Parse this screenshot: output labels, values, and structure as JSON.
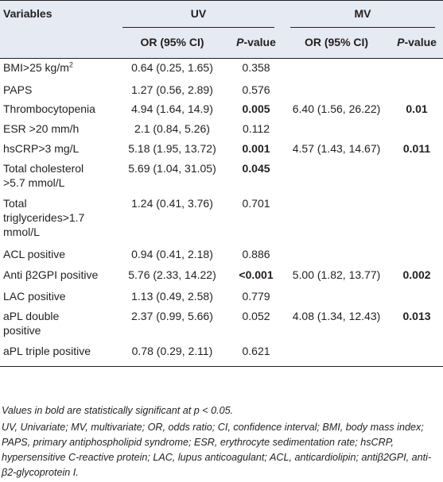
{
  "header": {
    "variables": "Variables",
    "uv": "UV",
    "mv": "MV",
    "or_ci": "OR (95% CI)",
    "p_value_italic": "P",
    "p_value_rest": "-value"
  },
  "rows": [
    {
      "variable": "BMI>25 kg/m",
      "variable_sup": "2",
      "uv_or": "0.64 (0.25, 1.65)",
      "uv_p": "0.358",
      "uv_p_bold": false,
      "mv_or": "",
      "mv_p": "",
      "mv_p_bold": false
    },
    {
      "variable": "PAPS",
      "uv_or": "1.27 (0.56, 2.89)",
      "uv_p": "0.576",
      "uv_p_bold": false,
      "mv_or": "",
      "mv_p": "",
      "mv_p_bold": false
    },
    {
      "variable": "Thrombocytopenia",
      "uv_or": "4.94 (1.64, 14.9)",
      "uv_p": "0.005",
      "uv_p_bold": true,
      "mv_or": "6.40 (1.56, 26.22)",
      "mv_p": "0.01",
      "mv_p_bold": true
    },
    {
      "variable": "ESR >20 mm/h",
      "uv_or": "2.1 (0.84, 5.26)",
      "uv_p": "0.112",
      "uv_p_bold": false,
      "mv_or": "",
      "mv_p": "",
      "mv_p_bold": false
    },
    {
      "variable": "hsCRP>3 mg/L",
      "uv_or": "5.18 (1.95, 13.72)",
      "uv_p": "0.001",
      "uv_p_bold": true,
      "mv_or": "4.57 (1.43, 14.67)",
      "mv_p": "0.011",
      "mv_p_bold": true
    },
    {
      "variable_line1": "Total cholesterol",
      "variable_line2": ">5.7 mmol/L",
      "uv_or": "5.69 (1.04, 31.05)",
      "uv_p": "0.045",
      "uv_p_bold": true,
      "mv_or": "",
      "mv_p": "",
      "mv_p_bold": false
    },
    {
      "variable_line1": "Total",
      "variable_line2": "triglycerides>1.7",
      "variable_line3": "mmol/L",
      "uv_or": "1.24 (0.41, 3.76)",
      "uv_p": "0.701",
      "uv_p_bold": false,
      "mv_or": "",
      "mv_p": "",
      "mv_p_bold": false
    },
    {
      "variable": "ACL positive",
      "uv_or": "0.94 (0.41, 2.18)",
      "uv_p": "0.886",
      "uv_p_bold": false,
      "mv_or": "",
      "mv_p": "",
      "mv_p_bold": false
    },
    {
      "variable": "Anti β2GPI positive",
      "uv_or": "5.76 (2.33, 14.22)",
      "uv_p": "<0.001",
      "uv_p_bold": true,
      "mv_or": "5.00 (1.82, 13.77)",
      "mv_p": "0.002",
      "mv_p_bold": true
    },
    {
      "variable": "LAC positive",
      "uv_or": "1.13 (0.49, 2.58)",
      "uv_p": "0.779",
      "uv_p_bold": false,
      "mv_or": "",
      "mv_p": "",
      "mv_p_bold": false
    },
    {
      "variable_line1": "aPL double",
      "variable_line2": "positive",
      "uv_or": "2.37 (0.99, 5.66)",
      "uv_p": "0.052",
      "uv_p_bold": false,
      "mv_or": "4.08 (1.34, 12.43)",
      "mv_p": "0.013",
      "mv_p_bold": true
    },
    {
      "variable": "aPL triple positive",
      "uv_or": "0.78 (0.29, 2.11)",
      "uv_p": "0.621",
      "uv_p_bold": false,
      "mv_or": "",
      "mv_p": "",
      "mv_p_bold": false
    }
  ],
  "notes": {
    "line1": "Values in bold are statistically significant at p < 0.05.",
    "line2": "UV, Univariate; MV, multivariate; OR, odds ratio; CI, confidence interval; BMI, body mass index; PAPS, primary antiphospholipid syndrome; ESR, erythrocyte sedimentation rate; hsCRP, hypersensitive C-reactive protein; LAC, lupus anticoagulant; ACL, anticardiolipin; antiβ2GPI, anti-β2-glycoprotein I."
  }
}
